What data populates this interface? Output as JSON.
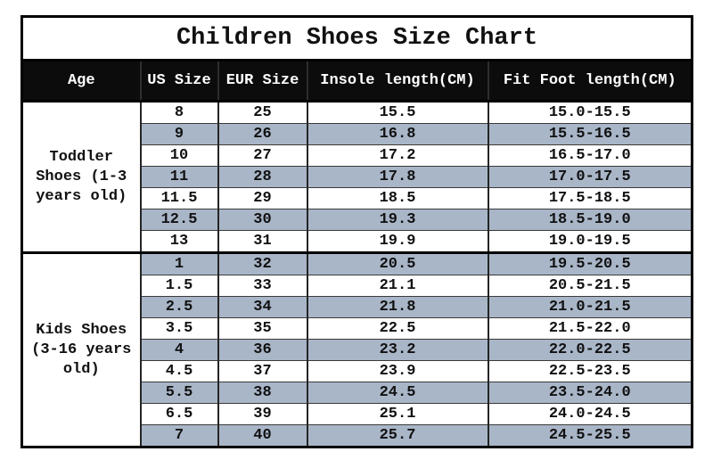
{
  "chart_data": {
    "type": "table",
    "title": "Children Shoes Size Chart",
    "columns": [
      "Age",
      "US Size",
      "EUR Size",
      "Insole length(CM)",
      "Fit Foot length(CM)"
    ],
    "groups": [
      {
        "age_label": "Toddler Shoes (1-3 years old)",
        "rows": [
          {
            "us": "8",
            "eur": "25",
            "insole": "15.5",
            "fit": "15.0-15.5"
          },
          {
            "us": "9",
            "eur": "26",
            "insole": "16.8",
            "fit": "15.5-16.5"
          },
          {
            "us": "10",
            "eur": "27",
            "insole": "17.2",
            "fit": "16.5-17.0"
          },
          {
            "us": "11",
            "eur": "28",
            "insole": "17.8",
            "fit": "17.0-17.5"
          },
          {
            "us": "11.5",
            "eur": "29",
            "insole": "18.5",
            "fit": "17.5-18.5"
          },
          {
            "us": "12.5",
            "eur": "30",
            "insole": "19.3",
            "fit": "18.5-19.0"
          },
          {
            "us": "13",
            "eur": "31",
            "insole": "19.9",
            "fit": "19.0-19.5"
          }
        ]
      },
      {
        "age_label": "Kids Shoes (3-16 years old)",
        "rows": [
          {
            "us": "1",
            "eur": "32",
            "insole": "20.5",
            "fit": "19.5-20.5"
          },
          {
            "us": "1.5",
            "eur": "33",
            "insole": "21.1",
            "fit": "20.5-21.5"
          },
          {
            "us": "2.5",
            "eur": "34",
            "insole": "21.8",
            "fit": "21.0-21.5"
          },
          {
            "us": "3.5",
            "eur": "35",
            "insole": "22.5",
            "fit": "21.5-22.0"
          },
          {
            "us": "4",
            "eur": "36",
            "insole": "23.2",
            "fit": "22.0-22.5"
          },
          {
            "us": "4.5",
            "eur": "37",
            "insole": "23.9",
            "fit": "22.5-23.5"
          },
          {
            "us": "5.5",
            "eur": "38",
            "insole": "24.5",
            "fit": "23.5-24.0"
          },
          {
            "us": "6.5",
            "eur": "39",
            "insole": "25.1",
            "fit": "24.0-24.5"
          },
          {
            "us": "7",
            "eur": "40",
            "insole": "25.7",
            "fit": "24.5-25.5"
          }
        ]
      }
    ],
    "layout_hints": {
      "stripe_rows": "alternating",
      "legend": "none",
      "grid": "on"
    },
    "colors": {
      "stripe_fill": "#a9b6c8",
      "header_bg": "#0c0c0c",
      "header_text": "#ffffff",
      "border": "#000000",
      "body_text": "#111111",
      "row_fill": "#ffffff"
    }
  }
}
